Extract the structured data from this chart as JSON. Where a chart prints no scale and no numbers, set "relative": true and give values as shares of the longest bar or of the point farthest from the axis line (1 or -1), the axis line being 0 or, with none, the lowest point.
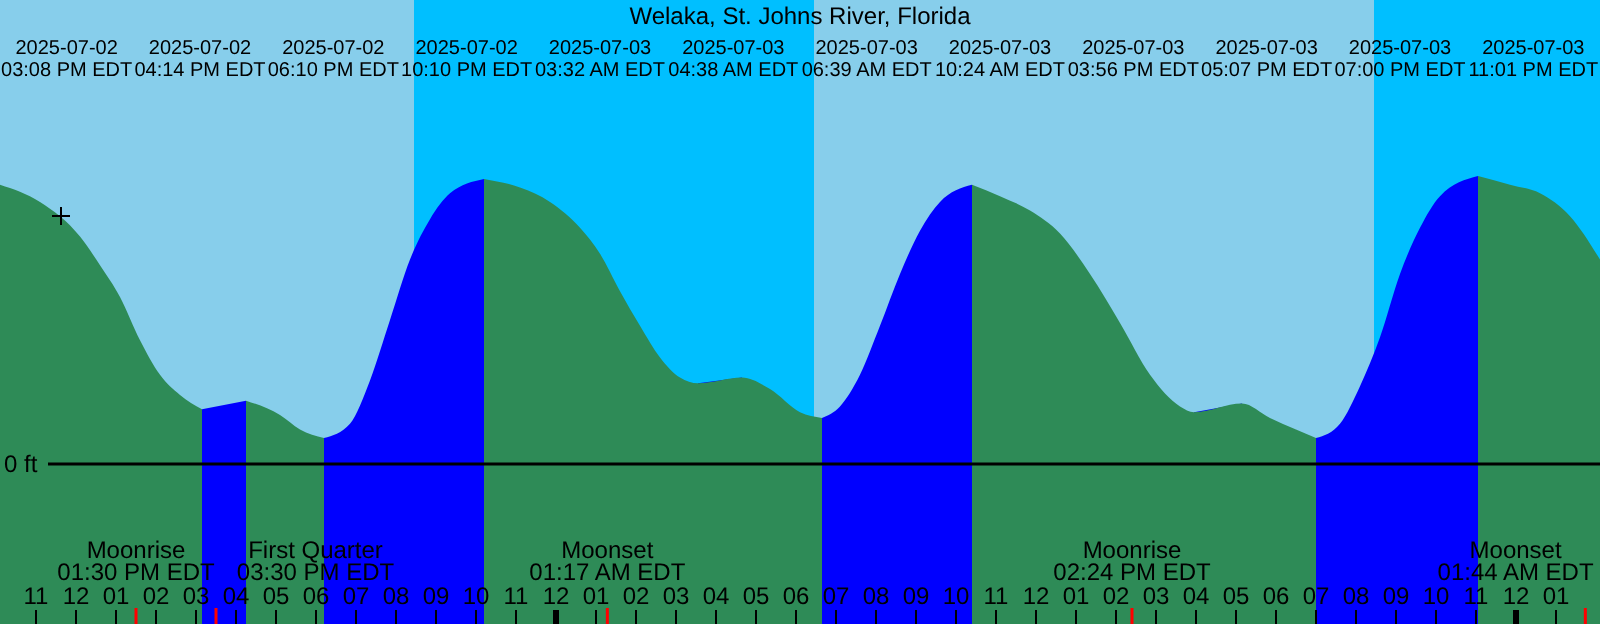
{
  "chart_data": {
    "type": "area",
    "title": "Welaka, St. Johns River, Florida",
    "relative": true,
    "xlim": [
      "2025-07-02T10:06",
      "2025-07-04T02:06"
    ],
    "xticks": [
      {
        "value": "2025-07-02T11:00",
        "label": "11"
      },
      {
        "value": "2025-07-02T12:00",
        "label": "12"
      },
      {
        "value": "2025-07-02T13:00",
        "label": "01"
      },
      {
        "value": "2025-07-02T14:00",
        "label": "02"
      },
      {
        "value": "2025-07-02T15:00",
        "label": "03"
      },
      {
        "value": "2025-07-02T16:00",
        "label": "04"
      },
      {
        "value": "2025-07-02T17:00",
        "label": "05"
      },
      {
        "value": "2025-07-02T18:00",
        "label": "06"
      },
      {
        "value": "2025-07-02T19:00",
        "label": "07"
      },
      {
        "value": "2025-07-02T20:00",
        "label": "08"
      },
      {
        "value": "2025-07-02T21:00",
        "label": "09"
      },
      {
        "value": "2025-07-02T22:00",
        "label": "10"
      },
      {
        "value": "2025-07-02T23:00",
        "label": "11"
      },
      {
        "value": "2025-07-03T00:00",
        "label": "12"
      },
      {
        "value": "2025-07-03T01:00",
        "label": "01"
      },
      {
        "value": "2025-07-03T02:00",
        "label": "02"
      },
      {
        "value": "2025-07-03T03:00",
        "label": "03"
      },
      {
        "value": "2025-07-03T04:00",
        "label": "04"
      },
      {
        "value": "2025-07-03T05:00",
        "label": "05"
      },
      {
        "value": "2025-07-03T06:00",
        "label": "06"
      },
      {
        "value": "2025-07-03T07:00",
        "label": "07"
      },
      {
        "value": "2025-07-03T08:00",
        "label": "08"
      },
      {
        "value": "2025-07-03T09:00",
        "label": "09"
      },
      {
        "value": "2025-07-03T10:00",
        "label": "10"
      },
      {
        "value": "2025-07-03T11:00",
        "label": "11"
      },
      {
        "value": "2025-07-03T12:00",
        "label": "12"
      },
      {
        "value": "2025-07-03T13:00",
        "label": "01"
      },
      {
        "value": "2025-07-03T14:00",
        "label": "02"
      },
      {
        "value": "2025-07-03T15:00",
        "label": "03"
      },
      {
        "value": "2025-07-03T16:00",
        "label": "04"
      },
      {
        "value": "2025-07-03T17:00",
        "label": "05"
      },
      {
        "value": "2025-07-03T18:00",
        "label": "06"
      },
      {
        "value": "2025-07-03T19:00",
        "label": "07"
      },
      {
        "value": "2025-07-03T20:00",
        "label": "08"
      },
      {
        "value": "2025-07-03T21:00",
        "label": "09"
      },
      {
        "value": "2025-07-03T22:00",
        "label": "10"
      },
      {
        "value": "2025-07-03T23:00",
        "label": "11"
      },
      {
        "value": "2025-07-04T00:00",
        "label": "12"
      },
      {
        "value": "2025-07-04T01:00",
        "label": "01"
      }
    ],
    "x": [
      "2025-07-02T10:06",
      "2025-07-02T11:06",
      "2025-07-02T12:06",
      "2025-07-02T12:36",
      "2025-07-02T13:06",
      "2025-07-02T13:36",
      "2025-07-02T14:06",
      "2025-07-02T14:36",
      "2025-07-02T15:09",
      "2025-07-02T16:15",
      "2025-07-02T17:06",
      "2025-07-02T17:36",
      "2025-07-02T18:12",
      "2025-07-02T18:51",
      "2025-07-02T19:21",
      "2025-07-02T19:51",
      "2025-07-02T20:21",
      "2025-07-02T20:51",
      "2025-07-02T21:21",
      "2025-07-02T22:12",
      "2025-07-02T23:06",
      "2025-07-02T23:51",
      "2025-07-03T00:36",
      "2025-07-03T01:06",
      "2025-07-03T01:36",
      "2025-07-03T02:06",
      "2025-07-03T02:36",
      "2025-07-03T03:06",
      "2025-07-03T03:33",
      "2025-07-03T04:39",
      "2025-07-03T05:21",
      "2025-07-03T06:06",
      "2025-07-03T06:39",
      "2025-07-03T07:06",
      "2025-07-03T07:36",
      "2025-07-03T08:06",
      "2025-07-03T08:36",
      "2025-07-03T09:06",
      "2025-07-03T09:36",
      "2025-07-03T10:24",
      "2025-07-03T11:06",
      "2025-07-03T11:51",
      "2025-07-03T12:36",
      "2025-07-03T13:21",
      "2025-07-03T14:06",
      "2025-07-03T14:51",
      "2025-07-03T15:36",
      "2025-07-03T15:57",
      "2025-07-03T17:09",
      "2025-07-03T17:51",
      "2025-07-03T18:30",
      "2025-07-03T19:00",
      "2025-07-03T19:36",
      "2025-07-03T20:06",
      "2025-07-03T20:36",
      "2025-07-03T21:06",
      "2025-07-03T21:36",
      "2025-07-03T22:06",
      "2025-07-03T23:03",
      "2025-07-03T23:51",
      "2025-07-04T00:36",
      "2025-07-04T01:21",
      "2025-07-04T02:06"
    ],
    "series": [
      {
        "color": "#2e8b57",
        "values": [
          0.97,
          0.91,
          0.79,
          0.69,
          0.58,
          0.43,
          0.31,
          0.24,
          0.19,
          null,
          null,
          null,
          null,
          null,
          null,
          null,
          null,
          null,
          null,
          null,
          null,
          null,
          null,
          null,
          null,
          null,
          null,
          null,
          null,
          null,
          null,
          null,
          null,
          null,
          null,
          null,
          null,
          null,
          null,
          null,
          null,
          null,
          null,
          null,
          null,
          null,
          null,
          null,
          null,
          null,
          null,
          null,
          null,
          null,
          null,
          null,
          null,
          null,
          null,
          null,
          null,
          null,
          null
        ]
      },
      {
        "color": "#0000ff",
        "values": [
          null,
          null,
          null,
          null,
          null,
          null,
          null,
          null,
          0.19,
          0.22,
          null,
          null,
          0.09,
          0.14,
          0.29,
          0.5,
          0.71,
          0.85,
          0.94,
          0.99,
          null,
          null,
          null,
          null,
          null,
          null,
          null,
          null,
          0.28,
          0.3,
          null,
          null,
          0.16,
          0.2,
          0.31,
          0.48,
          0.66,
          0.81,
          0.91,
          0.97,
          null,
          null,
          null,
          null,
          null,
          null,
          null,
          0.18,
          0.21,
          null,
          null,
          0.09,
          0.14,
          0.27,
          0.44,
          0.66,
          0.82,
          0.93,
          1.0,
          null,
          null,
          null,
          null
        ]
      },
      {
        "color": "#2e8b57",
        "values": [
          null,
          null,
          null,
          null,
          null,
          null,
          null,
          null,
          null,
          0.22,
          0.17,
          0.12,
          0.09,
          null,
          null,
          null,
          null,
          null,
          null,
          0.99,
          0.96,
          0.91,
          0.82,
          0.73,
          0.6,
          0.48,
          0.37,
          0.3,
          0.28,
          0.3,
          0.26,
          0.18,
          0.16,
          null,
          null,
          null,
          null,
          null,
          null,
          0.97,
          0.93,
          0.88,
          0.8,
          0.66,
          0.49,
          0.31,
          0.2,
          0.18,
          0.21,
          0.16,
          0.12,
          0.09,
          null,
          null,
          null,
          null,
          null,
          null,
          1.0,
          0.97,
          0.94,
          0.86,
          0.71
        ]
      }
    ],
    "bands": [
      {
        "axis": "x",
        "from": "2025-07-02T10:06",
        "to": "2025-07-02T20:27",
        "color": "#87ceeb"
      },
      {
        "axis": "x",
        "from": "2025-07-02T20:27",
        "to": "2025-07-03T06:27",
        "color": "#00bfff"
      },
      {
        "axis": "x",
        "from": "2025-07-03T06:27",
        "to": "2025-07-03T20:27",
        "color": "#87ceeb"
      },
      {
        "axis": "x",
        "from": "2025-07-03T20:27",
        "to": "2025-07-04T02:06",
        "color": "#00bfff"
      }
    ],
    "ref_lines": [
      {
        "axis": "y",
        "value": 0,
        "label": "0 ft",
        "color": "#000000"
      },
      {
        "axis": "x",
        "value": "2025-07-02T13:30",
        "label": "Moonrise\n01:30 PM EDT",
        "color": "#ff0000"
      },
      {
        "axis": "x",
        "value": "2025-07-02T15:30",
        "label": "First Quarter\n03:30 PM EDT",
        "color": "#ff0000"
      },
      {
        "axis": "x",
        "value": "2025-07-03T01:17",
        "label": "Moonset\n01:17 AM EDT",
        "color": "#ff0000"
      },
      {
        "axis": "x",
        "value": "2025-07-03T14:24",
        "label": "Moonrise\n02:24 PM EDT",
        "color": "#ff0000"
      },
      {
        "axis": "x",
        "value": "2025-07-04T01:44",
        "label": "Moonset\n01:44 AM EDT",
        "color": "#ff0000"
      }
    ],
    "annotations": [
      "2025-07-02 03:08 PM EDT",
      "2025-07-02 04:14 PM EDT",
      "2025-07-02 06:10 PM EDT",
      "2025-07-02 10:10 PM EDT",
      "2025-07-03 03:32 AM EDT",
      "2025-07-03 04:38 AM EDT",
      "2025-07-03 06:39 AM EDT",
      "2025-07-03 10:24 AM EDT",
      "2025-07-03 03:56 PM EDT",
      "2025-07-03 05:07 PM EDT",
      "2025-07-03 07:00 PM EDT",
      "2025-07-03 11:01 PM EDT"
    ]
  }
}
